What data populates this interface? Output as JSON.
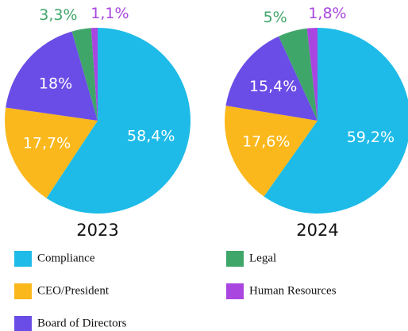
{
  "chart_data": [
    {
      "type": "pie",
      "title": "2023",
      "categories": [
        "Compliance",
        "CEO/President",
        "Board of Directors",
        "Legal",
        "Human Resources"
      ],
      "values": [
        58.4,
        17.7,
        18,
        3.3,
        1.1
      ],
      "value_labels": [
        "58,4%",
        "17,7%",
        "18%",
        "3,3%",
        "1,1%"
      ],
      "colors": [
        "#1ebbe8",
        "#fbb81c",
        "#6a4de6",
        "#3fa66a",
        "#a946e0"
      ]
    },
    {
      "type": "pie",
      "title": "2024",
      "categories": [
        "Compliance",
        "CEO/President",
        "Board of Directors",
        "Legal",
        "Human Resources"
      ],
      "values": [
        59.2,
        17.6,
        15.4,
        5,
        1.8
      ],
      "value_labels": [
        "59,2%",
        "17,6%",
        "15,4%",
        "5%",
        "1,8%"
      ],
      "colors": [
        "#1ebbe8",
        "#fbb81c",
        "#6a4de6",
        "#3fa66a",
        "#a946e0"
      ]
    }
  ]
}
